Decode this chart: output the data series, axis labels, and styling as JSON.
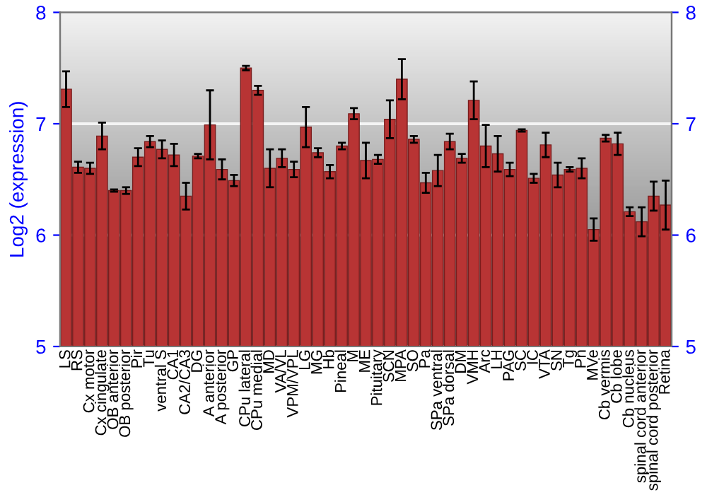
{
  "chart_data": {
    "type": "bar",
    "ylabel": "Log2 (expression)",
    "categories": [
      "LS",
      "RS",
      "Cx motor",
      "Cx cingulate",
      "OB anterior",
      "OB posterior",
      "Pir",
      "Tu",
      "ventral S",
      "CA1",
      "CA2/CA3",
      "DG",
      "A anterior",
      "A posterior",
      "GP",
      "CPu lateral",
      "CPu medial",
      "MD",
      "VA/VL",
      "VPM/VPL",
      "LG",
      "MG",
      "Hb",
      "Pineal",
      "M",
      "ME",
      "Pituitary",
      "SCN",
      "MPA",
      "SO",
      "Pa",
      "SPa ventral",
      "SPa dorsal",
      "DM",
      "VMH",
      "Arc",
      "LH",
      "PAG",
      "SC",
      "IC",
      "VTA",
      "SN",
      "Tg",
      "Pn",
      "MVe",
      "Cb vermis",
      "Cb lobe",
      "Cb nucleus",
      "spinal cord anterior",
      "spinal cord posterior",
      "Retina"
    ],
    "series": [
      {
        "color": "#b83434",
        "values": [
          7.31,
          6.61,
          6.6,
          6.89,
          6.4,
          6.4,
          6.7,
          6.84,
          6.77,
          6.72,
          6.35,
          6.71,
          6.99,
          6.59,
          6.49,
          7.5,
          7.3,
          6.6,
          6.69,
          6.59,
          6.97,
          6.74,
          6.57,
          6.8,
          7.09,
          6.67,
          6.68,
          7.04,
          7.4,
          6.86,
          6.47,
          6.58,
          6.84,
          6.69,
          7.21,
          6.8,
          6.73,
          6.59,
          6.94,
          6.51,
          6.81,
          6.54,
          6.59,
          6.6,
          6.05,
          6.87,
          6.82,
          6.21,
          6.12,
          6.35,
          6.27
        ],
        "errors": [
          0.16,
          0.05,
          0.05,
          0.12,
          0.01,
          0.03,
          0.08,
          0.05,
          0.08,
          0.1,
          0.12,
          0.02,
          0.31,
          0.09,
          0.05,
          0.02,
          0.04,
          0.17,
          0.08,
          0.07,
          0.18,
          0.04,
          0.06,
          0.03,
          0.05,
          0.16,
          0.04,
          0.17,
          0.18,
          0.03,
          0.09,
          0.14,
          0.07,
          0.04,
          0.17,
          0.19,
          0.16,
          0.06,
          0.01,
          0.04,
          0.11,
          0.11,
          0.02,
          0.09,
          0.1,
          0.03,
          0.1,
          0.04,
          0.13,
          0.13,
          0.22
        ]
      }
    ],
    "ylim": [
      5,
      8
    ],
    "yticks": [
      5,
      6,
      7,
      8
    ],
    "y2lim": [
      5,
      8
    ],
    "y2ticks": [
      5,
      6,
      7,
      8
    ],
    "grid": "y"
  }
}
